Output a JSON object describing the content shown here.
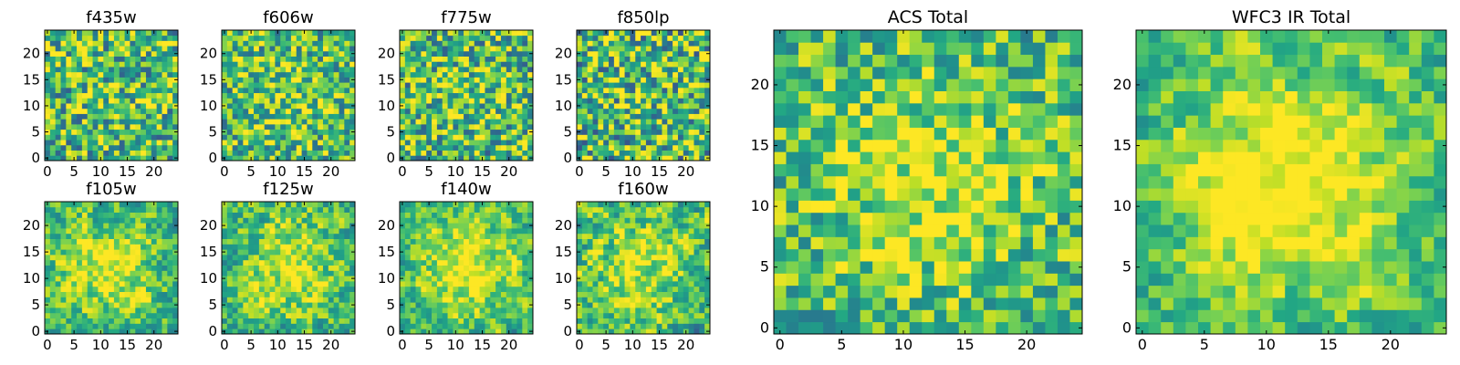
{
  "figure": {
    "colormap": "viridis",
    "background": "#ffffff"
  },
  "chart_data": [
    {
      "type": "heatmap",
      "title": "f435w",
      "grid": [
        25,
        25
      ],
      "xlim": [
        0,
        24
      ],
      "ylim": [
        0,
        24
      ],
      "xticks": [
        "0",
        "5",
        "10",
        "15",
        "20"
      ],
      "yticks": [
        "0",
        "5",
        "10",
        "15",
        "20"
      ],
      "value_range": [
        0,
        1
      ],
      "texture": 0.55,
      "center_strength": 0.05,
      "smooth": 0,
      "seed": 11
    },
    {
      "type": "heatmap",
      "title": "f606w",
      "grid": [
        25,
        25
      ],
      "xlim": [
        0,
        24
      ],
      "ylim": [
        0,
        24
      ],
      "xticks": [
        "0",
        "5",
        "10",
        "15",
        "20"
      ],
      "yticks": [
        "0",
        "5",
        "10",
        "15",
        "20"
      ],
      "value_range": [
        0,
        1
      ],
      "texture": 0.5,
      "center_strength": 0.12,
      "smooth": 0,
      "seed": 23
    },
    {
      "type": "heatmap",
      "title": "f775w",
      "grid": [
        25,
        25
      ],
      "xlim": [
        0,
        24
      ],
      "ylim": [
        0,
        24
      ],
      "xticks": [
        "0",
        "5",
        "10",
        "15",
        "20"
      ],
      "yticks": [
        "0",
        "5",
        "10",
        "15",
        "20"
      ],
      "value_range": [
        0,
        1
      ],
      "texture": 0.55,
      "center_strength": 0.08,
      "smooth": 0,
      "seed": 37
    },
    {
      "type": "heatmap",
      "title": "f850lp",
      "grid": [
        25,
        25
      ],
      "xlim": [
        0,
        24
      ],
      "ylim": [
        0,
        24
      ],
      "xticks": [
        "0",
        "5",
        "10",
        "15",
        "20"
      ],
      "yticks": [
        "0",
        "5",
        "10",
        "15",
        "20"
      ],
      "value_range": [
        0,
        1
      ],
      "texture": 0.6,
      "center_strength": 0.05,
      "smooth": 0,
      "seed": 41
    },
    {
      "type": "heatmap",
      "title": "f105w",
      "grid": [
        25,
        25
      ],
      "xlim": [
        0,
        24
      ],
      "ylim": [
        0,
        24
      ],
      "xticks": [
        "0",
        "5",
        "10",
        "15",
        "20"
      ],
      "yticks": [
        "0",
        "5",
        "10",
        "15",
        "20"
      ],
      "value_range": [
        0,
        1
      ],
      "texture": 0.55,
      "center_strength": 0.3,
      "smooth": 1,
      "seed": 53
    },
    {
      "type": "heatmap",
      "title": "f125w",
      "grid": [
        25,
        25
      ],
      "xlim": [
        0,
        24
      ],
      "ylim": [
        0,
        24
      ],
      "xticks": [
        "0",
        "5",
        "10",
        "15",
        "20"
      ],
      "yticks": [
        "0",
        "5",
        "10",
        "15",
        "20"
      ],
      "value_range": [
        0,
        1
      ],
      "texture": 0.55,
      "center_strength": 0.28,
      "smooth": 1,
      "seed": 67
    },
    {
      "type": "heatmap",
      "title": "f140w",
      "grid": [
        25,
        25
      ],
      "xlim": [
        0,
        24
      ],
      "ylim": [
        0,
        24
      ],
      "xticks": [
        "0",
        "5",
        "10",
        "15",
        "20"
      ],
      "yticks": [
        "0",
        "5",
        "10",
        "15",
        "20"
      ],
      "value_range": [
        0,
        1
      ],
      "texture": 0.5,
      "center_strength": 0.35,
      "smooth": 1,
      "seed": 79
    },
    {
      "type": "heatmap",
      "title": "f160w",
      "grid": [
        25,
        25
      ],
      "xlim": [
        0,
        24
      ],
      "ylim": [
        0,
        24
      ],
      "xticks": [
        "0",
        "5",
        "10",
        "15",
        "20"
      ],
      "yticks": [
        "0",
        "5",
        "10",
        "15",
        "20"
      ],
      "value_range": [
        0,
        1
      ],
      "texture": 0.6,
      "center_strength": 0.3,
      "smooth": 1,
      "seed": 83
    },
    {
      "type": "heatmap",
      "title": "ACS Total",
      "grid": [
        25,
        25
      ],
      "xlim": [
        0,
        24
      ],
      "ylim": [
        0,
        24
      ],
      "xticks": [
        "0",
        "5",
        "10",
        "15",
        "20"
      ],
      "yticks": [
        "0",
        "5",
        "10",
        "15",
        "20"
      ],
      "value_range": [
        0,
        1
      ],
      "texture": 0.4,
      "center_strength": 0.25,
      "smooth": 0,
      "seed": 97
    },
    {
      "type": "heatmap",
      "title": "WFC3 IR Total",
      "grid": [
        25,
        25
      ],
      "xlim": [
        0,
        24
      ],
      "ylim": [
        0,
        24
      ],
      "xticks": [
        "0",
        "5",
        "10",
        "15",
        "20"
      ],
      "yticks": [
        "0",
        "5",
        "10",
        "15",
        "20"
      ],
      "value_range": [
        0,
        1
      ],
      "texture": 0.45,
      "center_strength": 0.45,
      "smooth": 1,
      "seed": 101
    }
  ]
}
